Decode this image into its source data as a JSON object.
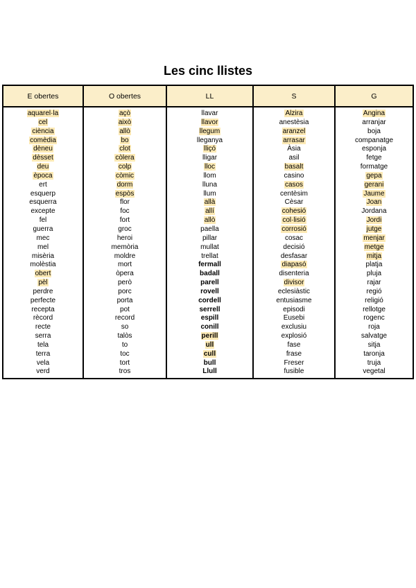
{
  "title": "Les cinc llistes",
  "colors": {
    "header_bg": "#FBEEC9",
    "highlight": "#FCE9B4",
    "border": "#000000"
  },
  "table": {
    "columns": [
      {
        "header": "E obertes",
        "words": [
          {
            "t": "aquarel·la",
            "hl": true
          },
          {
            "t": "cel",
            "hl": true
          },
          {
            "t": "ciència",
            "hl": true
          },
          {
            "t": "comèdia",
            "hl": true
          },
          {
            "t": "dèneu",
            "hl": true
          },
          {
            "t": "dèsset",
            "hl": true
          },
          {
            "t": "deu",
            "hl": true
          },
          {
            "t": "època",
            "hl": true
          },
          {
            "t": "ert"
          },
          {
            "t": "esquerp"
          },
          {
            "t": "esquerra"
          },
          {
            "t": "excepte"
          },
          {
            "t": "fel"
          },
          {
            "t": "guerra"
          },
          {
            "t": "mec"
          },
          {
            "t": "mel"
          },
          {
            "t": "misèria"
          },
          {
            "t": "molèstia"
          },
          {
            "t": "obert",
            "hl": true
          },
          {
            "t": "pèl",
            "hl": true
          },
          {
            "t": "perdre"
          },
          {
            "t": "perfecte"
          },
          {
            "t": "recepta"
          },
          {
            "t": "rècord"
          },
          {
            "t": "recte"
          },
          {
            "t": "serra"
          },
          {
            "t": "tela"
          },
          {
            "t": "terra"
          },
          {
            "t": "vela"
          },
          {
            "t": "verd"
          }
        ]
      },
      {
        "header": "O obertes",
        "words": [
          {
            "t": "açò",
            "hl": true
          },
          {
            "t": "això",
            "hl": true
          },
          {
            "t": "allò",
            "hl": true
          },
          {
            "t": "bo",
            "hl": true
          },
          {
            "t": "clot",
            "hl": true
          },
          {
            "t": "còlera",
            "hl": true
          },
          {
            "t": "colp",
            "hl": true
          },
          {
            "t": "còmic",
            "hl": true
          },
          {
            "t": "dorm",
            "hl": true
          },
          {
            "t": "espòs",
            "hl": true
          },
          {
            "t": "flor"
          },
          {
            "t": "foc"
          },
          {
            "t": "fort"
          },
          {
            "t": "groc"
          },
          {
            "t": "heroi"
          },
          {
            "t": "memòria"
          },
          {
            "t": "moldre"
          },
          {
            "t": "mort"
          },
          {
            "t": "òpera"
          },
          {
            "t": "però"
          },
          {
            "t": "porc"
          },
          {
            "t": "porta"
          },
          {
            "t": "pot"
          },
          {
            "t": "record"
          },
          {
            "t": "so"
          },
          {
            "t": "talòs"
          },
          {
            "t": "to"
          },
          {
            "t": "toc"
          },
          {
            "t": "tort"
          },
          {
            "t": "tros"
          }
        ]
      },
      {
        "header": "LL",
        "words": [
          {
            "t": "llavar"
          },
          {
            "t": "llavor",
            "hl": true
          },
          {
            "t": "llegum",
            "hl": true
          },
          {
            "t": "lleganya"
          },
          {
            "t": "lliçó",
            "hl": true
          },
          {
            "t": "lligar"
          },
          {
            "t": "lloc",
            "hl": true
          },
          {
            "t": "llom"
          },
          {
            "t": "lluna"
          },
          {
            "t": "llum"
          },
          {
            "t": "allà",
            "hl": true
          },
          {
            "t": "allí",
            "hl": true
          },
          {
            "t": "allò",
            "hl": true
          },
          {
            "t": "paella"
          },
          {
            "t": "pillar"
          },
          {
            "t": "mullat"
          },
          {
            "t": "trellat"
          },
          {
            "t": "fermall",
            "b": true
          },
          {
            "t": "badall",
            "b": true
          },
          {
            "t": "parell",
            "b": true
          },
          {
            "t": "rovell",
            "b": true
          },
          {
            "t": "cordell",
            "b": true
          },
          {
            "t": "serrell",
            "b": true
          },
          {
            "t": "espill",
            "b": true
          },
          {
            "t": "conill",
            "b": true
          },
          {
            "t": "perill",
            "b": true,
            "hl": true
          },
          {
            "t": "ull",
            "b": true,
            "hl": true
          },
          {
            "t": "cull",
            "b": true,
            "hl": true
          },
          {
            "t": "bull",
            "b": true
          },
          {
            "t": "Llull",
            "b": true
          }
        ]
      },
      {
        "header": "S",
        "words": [
          {
            "t": "Alzira",
            "hl": true
          },
          {
            "t": "anestèsia"
          },
          {
            "t": "aranzel",
            "hl": true
          },
          {
            "t": "arrasar",
            "hl": true
          },
          {
            "t": "Àsia"
          },
          {
            "t": "asil"
          },
          {
            "t": "basalt",
            "hl": true
          },
          {
            "t": "casino"
          },
          {
            "t": "casos",
            "hl": true
          },
          {
            "t": "centèsim"
          },
          {
            "t": "Cèsar"
          },
          {
            "t": "cohesió",
            "hl": true
          },
          {
            "t": "col·lisió",
            "hl": true
          },
          {
            "t": "corrosió",
            "hl": true
          },
          {
            "t": "cosac"
          },
          {
            "t": "decisió"
          },
          {
            "t": "desfasar"
          },
          {
            "t": "diapasó",
            "hl": true
          },
          {
            "t": "disenteria"
          },
          {
            "t": "divisor",
            "hl": true
          },
          {
            "t": "eclesiàstic"
          },
          {
            "t": "entusiasme"
          },
          {
            "t": "episodi"
          },
          {
            "t": "Eusebi"
          },
          {
            "t": "exclusiu"
          },
          {
            "t": "explosió"
          },
          {
            "t": "fase"
          },
          {
            "t": "frase"
          },
          {
            "t": "Freser"
          },
          {
            "t": "fusible"
          }
        ]
      },
      {
        "header": "G",
        "words": [
          {
            "t": "Angina",
            "hl": true
          },
          {
            "t": "arranjar"
          },
          {
            "t": "boja"
          },
          {
            "t": "companatge"
          },
          {
            "t": "esponja"
          },
          {
            "t": "fetge"
          },
          {
            "t": "formatge"
          },
          {
            "t": "gepa",
            "hl": true
          },
          {
            "t": "gerani",
            "hl": true
          },
          {
            "t": "Jaume",
            "hl": true
          },
          {
            "t": "Joan",
            "hl": true
          },
          {
            "t": "Jordana"
          },
          {
            "t": "Jordi",
            "hl": true
          },
          {
            "t": "jutge",
            "hl": true
          },
          {
            "t": "menjar",
            "hl": true
          },
          {
            "t": "metge",
            "hl": true
          },
          {
            "t": "mitja",
            "hl": true
          },
          {
            "t": "platja"
          },
          {
            "t": "pluja"
          },
          {
            "t": "rajar"
          },
          {
            "t": "regió"
          },
          {
            "t": "religió"
          },
          {
            "t": "rellotge"
          },
          {
            "t": "rogenc"
          },
          {
            "t": "roja"
          },
          {
            "t": "salvatge"
          },
          {
            "t": "sitja"
          },
          {
            "t": "taronja"
          },
          {
            "t": "truja"
          },
          {
            "t": "vegetal"
          }
        ]
      }
    ]
  }
}
